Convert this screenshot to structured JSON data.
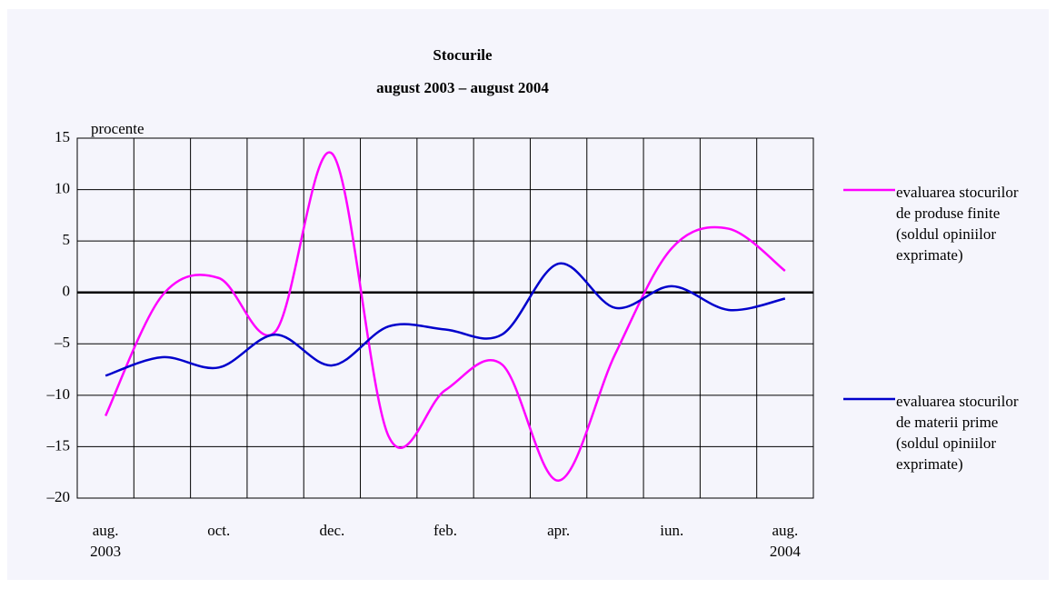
{
  "chart_data": {
    "type": "line",
    "title": "Stocurile",
    "subtitle": "august 2003 – august 2004",
    "y_label": "procente",
    "categories": [
      "aug.\n2003",
      null,
      "oct.",
      null,
      "dec.",
      null,
      "feb.",
      null,
      "apr.",
      null,
      "iun.",
      null,
      "aug.\n2004"
    ],
    "series": [
      {
        "name": "evaluarea stocurilor de produse finite (soldul opiniilor exprimate)",
        "color": "#ff00ff",
        "values": [
          -12,
          -0.3,
          1.4,
          -3.8,
          13.5,
          -14,
          -9.5,
          -7,
          -18.3,
          -6,
          4.3,
          6.2,
          2.1
        ]
      },
      {
        "name": "evaluarea stocurilor de materii prime (soldul opiniilor exprimate)",
        "color": "#0000cc",
        "values": [
          -8.1,
          -6.3,
          -7.3,
          -4.1,
          -7.1,
          -3.3,
          -3.6,
          -4.1,
          2.8,
          -1.5,
          0.6,
          -1.7,
          -0.6
        ]
      }
    ],
    "ylim": [
      -20,
      15
    ],
    "yticks": [
      {
        "value": -20,
        "label": "–20"
      },
      {
        "value": -15,
        "label": "–15"
      },
      {
        "value": -10,
        "label": "–10"
      },
      {
        "value": -5,
        "label": "–5"
      },
      0,
      5,
      10,
      15
    ],
    "grid": true
  }
}
